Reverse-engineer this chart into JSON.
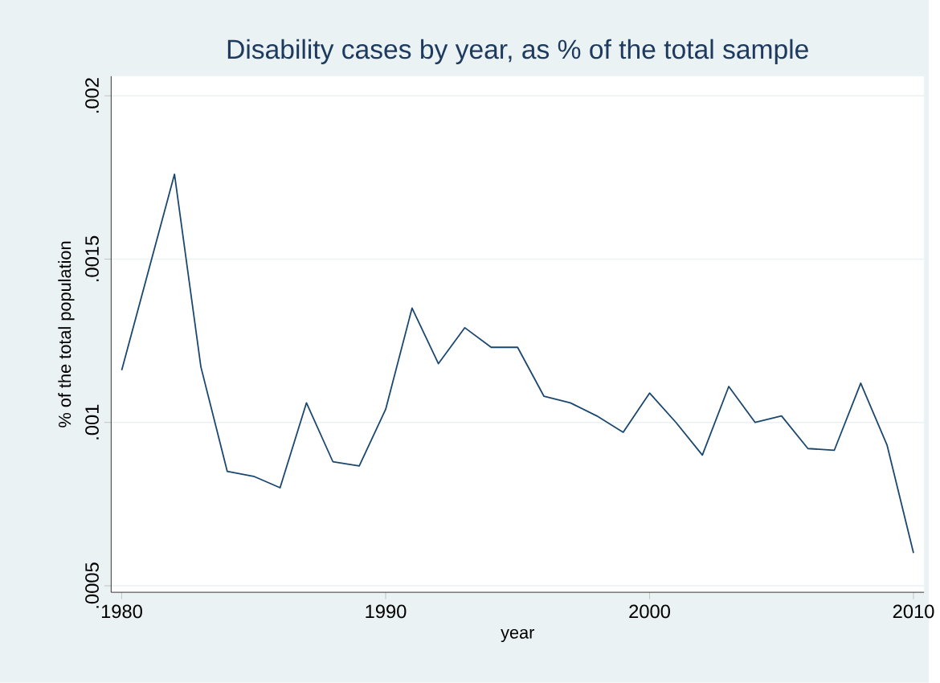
{
  "chart_data": {
    "type": "line",
    "title": "Disability cases by year, as % of the total sample",
    "xlabel": "year",
    "ylabel": "% of the total population",
    "x": [
      1980,
      1981,
      1982,
      1983,
      1984,
      1985,
      1986,
      1987,
      1988,
      1989,
      1990,
      1991,
      1992,
      1993,
      1994,
      1995,
      1996,
      1997,
      1998,
      1999,
      2000,
      2001,
      2002,
      2003,
      2004,
      2005,
      2006,
      2007,
      2008,
      2009,
      2010
    ],
    "series": [
      {
        "color": "#1a476f",
        "values": [
          0.00116,
          0.00146,
          0.00176,
          0.00117,
          0.00085,
          0.000835,
          0.0008,
          0.00106,
          0.00088,
          0.000867,
          0.00104,
          0.00135,
          0.00118,
          0.00129,
          0.00123,
          0.00123,
          0.00108,
          0.00106,
          0.00102,
          0.00097,
          0.00109,
          0.001,
          0.0009,
          0.00111,
          0.001,
          0.00102,
          0.00092,
          0.000915,
          0.00112,
          0.00093,
          0.0006
        ]
      }
    ],
    "xlim": [
      1979.6,
      2010.4
    ],
    "ylim": [
      0.00048,
      0.00206
    ],
    "xticks": [
      1980,
      1990,
      2000,
      2010
    ],
    "yticks": [
      {
        "value": 0.0005,
        "label": ".0005"
      },
      {
        "value": 0.001,
        "label": ".001"
      },
      {
        "value": 0.0015,
        "label": ".0015"
      },
      {
        "value": 0.002,
        "label": ".002"
      }
    ],
    "grid": "y",
    "marker": "none",
    "line_style": "solid"
  }
}
